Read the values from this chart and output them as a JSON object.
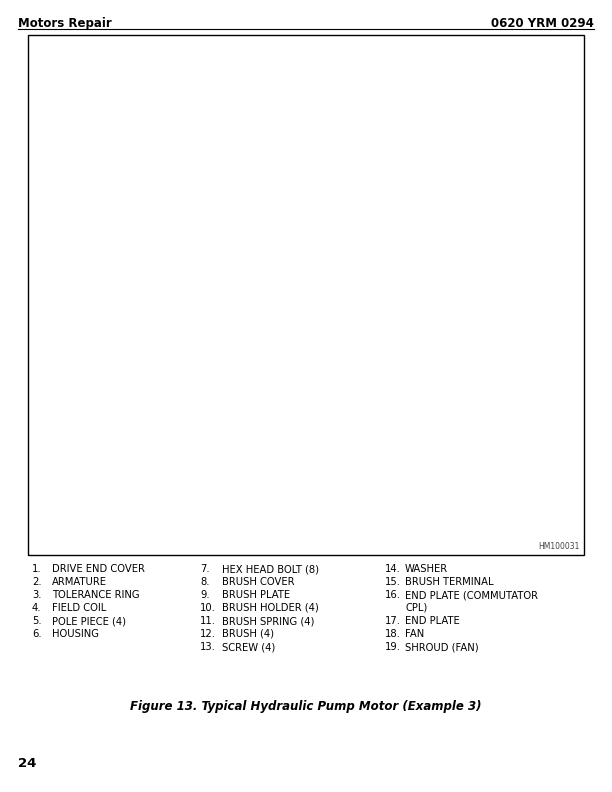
{
  "header_left": "Motors Repair",
  "header_right": "0620 YRM 0294",
  "header_fontsize": 8.5,
  "page_number": "24",
  "page_number_fontsize": 9.5,
  "figure_caption": "Figure 13. Typical Hydraulic Pump Motor (Example 3)",
  "figure_caption_fontsize": 8.5,
  "parts_col1": [
    [
      "1.",
      "DRIVE END COVER"
    ],
    [
      "2.",
      "ARMATURE"
    ],
    [
      "3.",
      "TOLERANCE RING"
    ],
    [
      "4.",
      "FIELD COIL"
    ],
    [
      "5.",
      "POLE PIECE (4)"
    ],
    [
      "6.",
      "HOUSING"
    ]
  ],
  "parts_col2": [
    [
      "7.",
      "HEX HEAD BOLT (8)"
    ],
    [
      "8.",
      "BRUSH COVER"
    ],
    [
      "9.",
      "BRUSH PLATE"
    ],
    [
      "10.",
      "BRUSH HOLDER (4)"
    ],
    [
      "11.",
      "BRUSH SPRING (4)"
    ],
    [
      "12.",
      "BRUSH (4)"
    ],
    [
      "13.",
      "SCREW (4)"
    ]
  ],
  "parts_col3": [
    [
      "14.",
      "WASHER"
    ],
    [
      "15.",
      "BRUSH TERMINAL"
    ],
    [
      "16.",
      "END PLATE (COMMUTATOR"
    ],
    [
      "",
      "CPL)"
    ],
    [
      "17.",
      "END PLATE"
    ],
    [
      "18.",
      "FAN"
    ],
    [
      "19.",
      "SHROUD (FAN)"
    ]
  ],
  "parts_fontsize": 7.2,
  "background_color": "#ffffff",
  "text_color": "#000000",
  "box_color": "#000000",
  "watermark": "HM100031",
  "fig_width": 6.12,
  "fig_height": 7.92,
  "dpi": 100
}
